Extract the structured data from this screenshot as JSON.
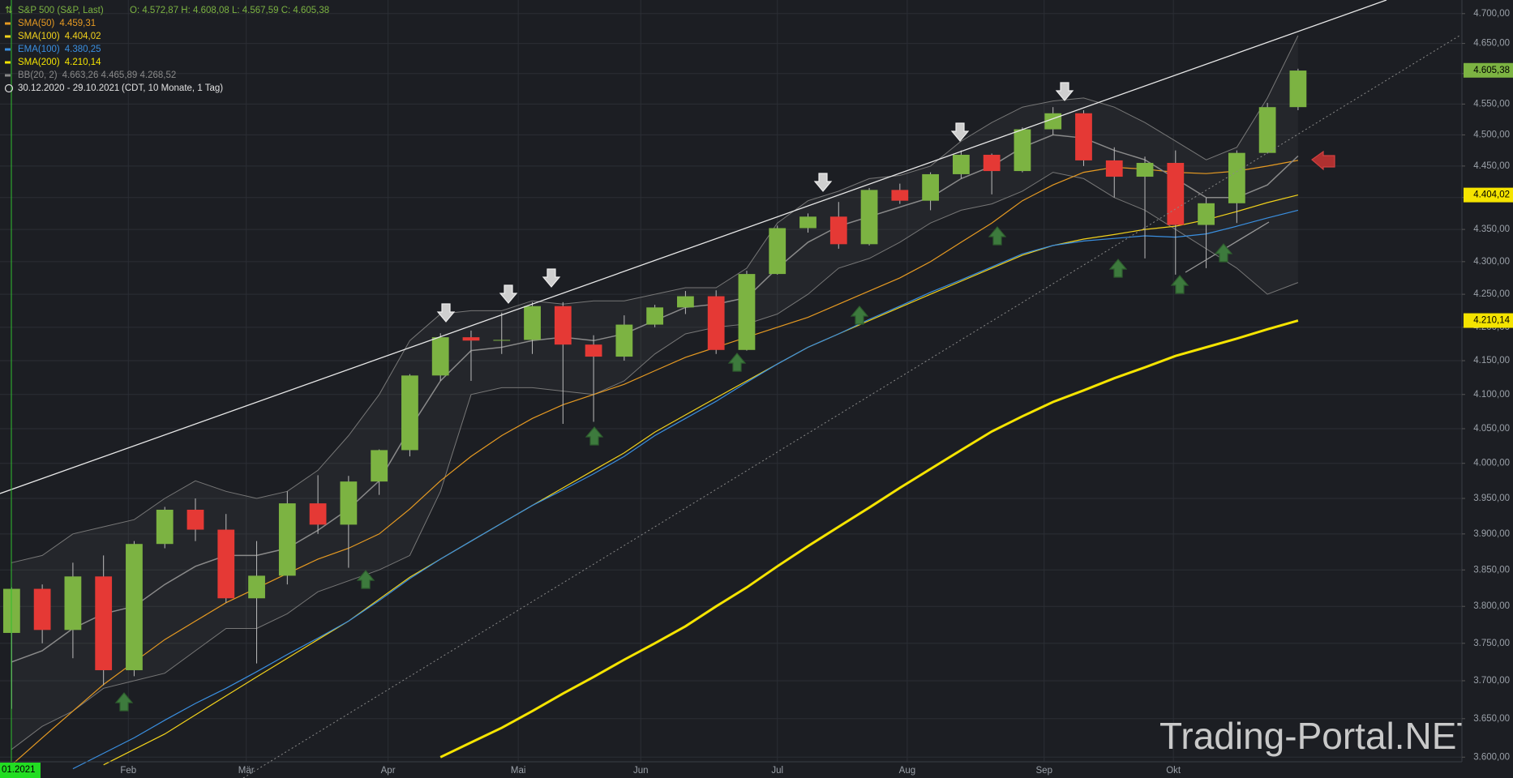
{
  "chart_data": {
    "type": "candlestick",
    "title": "S&P 500 (S&P, Last)",
    "ohlc_text": "O: 4.572,87  H: 4.608,08  L: 4.567,59  C: 4.605,38",
    "date_range": "30.12.2020 - 29.10.2021",
    "range_note": "(CDT, 10 Monate, 1 Tag)",
    "watermark": "Trading-Portal.NET",
    "log_scale": true,
    "grid": true,
    "up_color": "#7cb342",
    "down_color": "#e53935",
    "categories": [
      null,
      null,
      null,
      null,
      null,
      null,
      null,
      null,
      null,
      null,
      null,
      null,
      null,
      null,
      null,
      null,
      null,
      null,
      null,
      null,
      null,
      null,
      null,
      null,
      null,
      null,
      null,
      null,
      null,
      null,
      null,
      null,
      null,
      null,
      null,
      null,
      null,
      null,
      null,
      null,
      null,
      null,
      null
    ],
    "open": [
      3764,
      3824,
      3768,
      3841,
      3714,
      3886,
      3934,
      3906,
      3811,
      3842,
      3943,
      3913,
      3974,
      4019,
      4128,
      4185,
      4180,
      4181,
      4232,
      4174,
      4156,
      4204,
      4230,
      4247,
      4166,
      4281,
      4352,
      4370,
      4327,
      4412,
      4395,
      4437,
      4468,
      4442,
      4509,
      4535,
      4459,
      4433,
      4455,
      4357,
      4391,
      4471,
      4545
    ],
    "high": [
      3826,
      3830,
      3860,
      3870,
      3890,
      3938,
      3950,
      3928,
      3890,
      3960,
      3983,
      3982,
      4020,
      4130,
      4191,
      4195,
      4222,
      4238,
      4238,
      4188,
      4218,
      4234,
      4255,
      4256,
      4286,
      4356,
      4375,
      4393,
      4415,
      4422,
      4440,
      4475,
      4470,
      4512,
      4545,
      4540,
      4480,
      4465,
      4475,
      4400,
      4475,
      4552,
      4608
    ],
    "low": [
      3663,
      3750,
      3730,
      3694,
      3706,
      3880,
      3890,
      3805,
      3723,
      3830,
      3900,
      3853,
      3955,
      4010,
      4120,
      4120,
      4160,
      4160,
      4057,
      4060,
      4150,
      4200,
      4220,
      4160,
      4165,
      4280,
      4345,
      4320,
      4325,
      4390,
      4380,
      4430,
      4405,
      4440,
      4500,
      4450,
      4400,
      4305,
      4280,
      4290,
      4360,
      4470,
      4540
    ],
    "close": [
      3824,
      3768,
      3841,
      3714,
      3886,
      3934,
      3906,
      3811,
      3842,
      3943,
      3913,
      3974,
      4019,
      4128,
      4185,
      4180,
      4181,
      4232,
      4174,
      4156,
      4204,
      4230,
      4247,
      4166,
      4281,
      4352,
      4370,
      4327,
      4412,
      4395,
      4437,
      4468,
      4442,
      4509,
      4535,
      4459,
      4433,
      4455,
      4357,
      4391,
      4471,
      4545,
      4605
    ],
    "series": [
      {
        "name": "SMA(50)",
        "legend_value": "4.459,31",
        "color": "#e69a22",
        "width": 1.2,
        "values": [
          3590,
          3625,
          3660,
          3695,
          3725,
          3755,
          3780,
          3805,
          3825,
          3845,
          3865,
          3880,
          3900,
          3935,
          3975,
          4010,
          4040,
          4065,
          4085,
          4100,
          4115,
          4135,
          4155,
          4170,
          4185,
          4200,
          4215,
          4235,
          4255,
          4275,
          4300,
          4330,
          4360,
          4395,
          4420,
          4440,
          4448,
          4445,
          4440,
          4438,
          4442,
          4450,
          4459
        ]
      },
      {
        "name": "SMA(100)",
        "legend_value": "4.404,02",
        "color": "#f2d21b",
        "width": 1.2,
        "values": [
          null,
          null,
          null,
          3590,
          3610,
          3630,
          3655,
          3680,
          3705,
          3730,
          3755,
          3780,
          3810,
          3840,
          3865,
          3890,
          3915,
          3940,
          3965,
          3990,
          4015,
          4045,
          4070,
          4095,
          4120,
          4145,
          4170,
          4190,
          4210,
          4230,
          4250,
          4270,
          4290,
          4310,
          4325,
          4335,
          4342,
          4350,
          4355,
          4365,
          4378,
          4392,
          4404
        ]
      },
      {
        "name": "EMA(100)",
        "legend_value": "4.380,25",
        "color": "#3a8fe0",
        "width": 1.2,
        "values": [
          null,
          null,
          3585,
          3605,
          3625,
          3648,
          3670,
          3690,
          3712,
          3735,
          3757,
          3780,
          3808,
          3838,
          3865,
          3890,
          3915,
          3940,
          3962,
          3985,
          4010,
          4040,
          4065,
          4090,
          4118,
          4145,
          4170,
          4190,
          4212,
          4232,
          4253,
          4272,
          4292,
          4312,
          4325,
          4332,
          4336,
          4340,
          4338,
          4343,
          4355,
          4368,
          4380
        ]
      },
      {
        "name": "SMA(200)",
        "legend_value": "4.210,14",
        "color": "#f5e400",
        "width": 3,
        "values": [
          null,
          null,
          null,
          null,
          null,
          null,
          null,
          null,
          null,
          null,
          null,
          null,
          null,
          null,
          3600,
          3619,
          3638,
          3660,
          3683,
          3705,
          3728,
          3750,
          3773,
          3800,
          3826,
          3855,
          3883,
          3910,
          3937,
          3965,
          3992,
          4019,
          4046,
          4068,
          4089,
          4106,
          4124,
          4140,
          4157,
          4170,
          4183,
          4197,
          4210
        ]
      },
      {
        "name": "BB(20, 2)",
        "legend_value": "4.663,26  4.465,89  4.268,52",
        "color": "#8a8a8a",
        "width": 1.5,
        "band": true,
        "values": [
          3725,
          3740,
          3770,
          3790,
          3800,
          3830,
          3855,
          3870,
          3870,
          3880,
          3905,
          3935,
          3975,
          4050,
          4120,
          4165,
          4170,
          4180,
          4185,
          4180,
          4190,
          4210,
          4230,
          4235,
          4245,
          4290,
          4330,
          4355,
          4370,
          4385,
          4400,
          4430,
          4450,
          4480,
          4500,
          4495,
          4475,
          4460,
          4430,
          4400,
          4400,
          4420,
          4466
        ],
        "upper": [
          3860,
          3870,
          3900,
          3910,
          3920,
          3950,
          3975,
          3960,
          3950,
          3960,
          3990,
          4040,
          4100,
          4180,
          4220,
          4225,
          4225,
          4240,
          4235,
          4240,
          4240,
          4250,
          4260,
          4260,
          4290,
          4360,
          4395,
          4410,
          4430,
          4435,
          4450,
          4490,
          4520,
          4545,
          4555,
          4560,
          4545,
          4520,
          4490,
          4460,
          4480,
          4560,
          4663
        ],
        "lower": [
          3610,
          3640,
          3660,
          3690,
          3700,
          3710,
          3740,
          3770,
          3770,
          3790,
          3820,
          3835,
          3850,
          3870,
          3960,
          4100,
          4110,
          4110,
          4105,
          4100,
          4120,
          4160,
          4190,
          4200,
          4205,
          4220,
          4250,
          4290,
          4305,
          4330,
          4360,
          4380,
          4390,
          4410,
          4440,
          4430,
          4400,
          4380,
          4350,
          4320,
          4290,
          4250,
          4268
        ]
      }
    ],
    "price_badges": [
      {
        "value": 4605.38,
        "label": "4.605,38",
        "color": "#7cb342"
      },
      {
        "value": 4404.02,
        "label": "4.404,02",
        "color": "#f5e400"
      },
      {
        "value": 4210.14,
        "label": "4.210,14",
        "color": "#f5e400"
      }
    ],
    "xlim": [
      -0.38,
      47.35
    ],
    "xticks": [
      {
        "value": -0.3,
        "label": "01.2021"
      },
      {
        "value": 3.81,
        "label": "Feb"
      },
      {
        "value": 7.66,
        "label": "Mär"
      },
      {
        "value": 12.29,
        "label": "Apr"
      },
      {
        "value": 16.54,
        "label": "Mai"
      },
      {
        "value": 20.54,
        "label": "Jun"
      },
      {
        "value": 25.0,
        "label": "Jul"
      },
      {
        "value": 29.24,
        "label": "Aug"
      },
      {
        "value": 33.71,
        "label": "Sep"
      },
      {
        "value": 37.93,
        "label": "Okt"
      }
    ],
    "ylim": [
      3594,
      4723
    ],
    "yticks": [
      {
        "value": 3600,
        "label": "3.600,00"
      },
      {
        "value": 3650,
        "label": "3.650,00"
      },
      {
        "value": 3700,
        "label": "3.700,00"
      },
      {
        "value": 3750,
        "label": "3.750,00"
      },
      {
        "value": 3800,
        "label": "3.800,00"
      },
      {
        "value": 3850,
        "label": "3.850,00"
      },
      {
        "value": 3900,
        "label": "3.900,00"
      },
      {
        "value": 3950,
        "label": "3.950,00"
      },
      {
        "value": 4000,
        "label": "4.000,00"
      },
      {
        "value": 4050,
        "label": "4.050,00"
      },
      {
        "value": 4100,
        "label": "4.100,00"
      },
      {
        "value": 4150,
        "label": "4.150,00"
      },
      {
        "value": 4200,
        "label": "4.200,00"
      },
      {
        "value": 4250,
        "label": "4.250,00"
      },
      {
        "value": 4300,
        "label": "4.300,00"
      },
      {
        "value": 4350,
        "label": "4.350,00"
      },
      {
        "value": 4400,
        "label": "4.400,00"
      },
      {
        "value": 4450,
        "label": "4.450,00"
      },
      {
        "value": 4500,
        "label": "4.500,00"
      },
      {
        "value": 4550,
        "label": "4.550,00"
      },
      {
        "value": 4600,
        "label": "4.600,00"
      },
      {
        "value": 4650,
        "label": "4.650,00"
      },
      {
        "value": 4700,
        "label": "4.700,00"
      }
    ]
  }
}
